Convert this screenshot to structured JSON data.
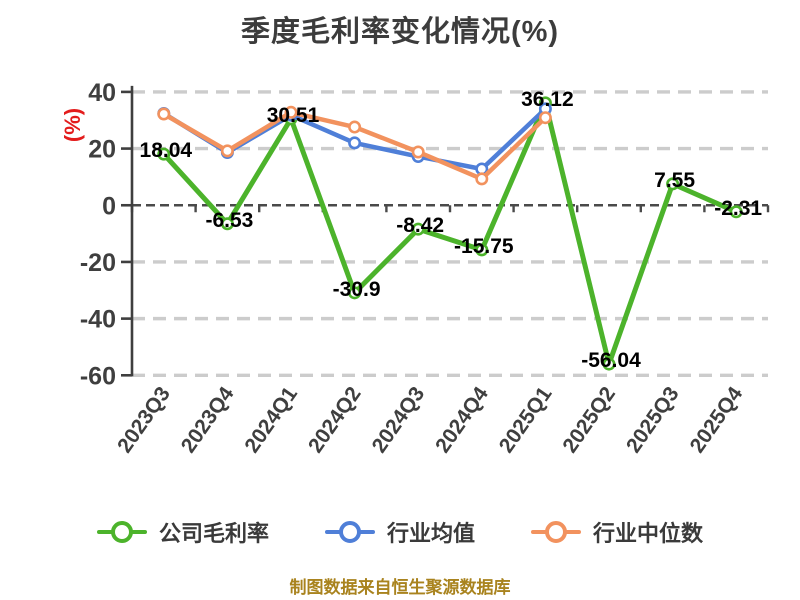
{
  "title": "季度毛利率变化情况(%)",
  "y_axis_label": "(%)",
  "footer": "制图数据来自恒生聚源数据库",
  "colors": {
    "company": "#4cb32b",
    "industry_avg": "#4f7fd8",
    "industry_median": "#f2925e",
    "grid": "#cccccc",
    "axis": "#3f3f3f",
    "zero_line": "#4a4a4a",
    "title_text": "#3c3c3c",
    "y_unit_text": "#e31c1c",
    "footer_text": "#a9831e",
    "data_label_text": "#000000"
  },
  "chart_data": {
    "type": "line",
    "categories": [
      "2023Q3",
      "2023Q4",
      "2024Q1",
      "2024Q2",
      "2024Q3",
      "2024Q4",
      "2025Q1",
      "2025Q2",
      "2025Q3",
      "2025Q4"
    ],
    "series": [
      {
        "name": "公司毛利率",
        "color": "#4cb32b",
        "values": [
          18.04,
          -6.53,
          30.51,
          -30.9,
          -8.42,
          -15.75,
          36.12,
          -56.04,
          7.55,
          -2.31
        ],
        "point_labels": [
          "18.04",
          "-6.53",
          "30.51",
          "-30.9",
          "-8.42",
          "-15.75",
          "36.12",
          "-56.04",
          "7.55",
          "-2.31"
        ]
      },
      {
        "name": "行业均值",
        "color": "#4f7fd8",
        "values": [
          32.4,
          18.6,
          31.8,
          22.0,
          17.2,
          12.8,
          34.0,
          null,
          null,
          null
        ],
        "point_labels": []
      },
      {
        "name": "行业中位数",
        "color": "#f2925e",
        "values": [
          32.2,
          19.2,
          32.8,
          27.6,
          18.8,
          9.3,
          30.9,
          null,
          null,
          null
        ],
        "point_labels": []
      }
    ],
    "ylim": [
      -60,
      40
    ],
    "yticks": [
      40,
      20,
      0,
      -20,
      -40,
      -60
    ],
    "grid": "horizontal dashed",
    "legend_position": "bottom",
    "x_label_rotation_deg": -55
  }
}
